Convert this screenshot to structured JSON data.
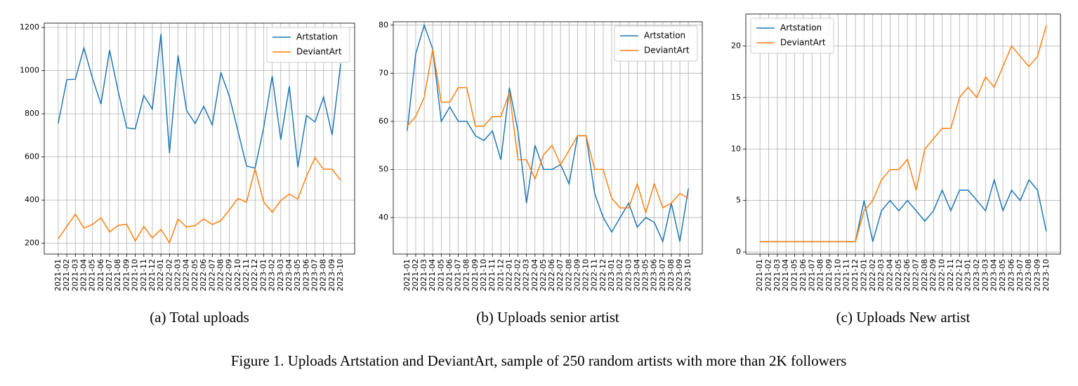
{
  "figure_caption": "Figure 1. Uploads Artstation and DeviantArt, sample of 250 random artists with more than 2K followers",
  "chart_data": [
    {
      "type": "line",
      "caption": "(a) Total uploads",
      "grid": true,
      "legend": "upper right",
      "categories": [
        "2021-01",
        "2021-02",
        "2021-03",
        "2021-04",
        "2021-05",
        "2021-06",
        "2021-07",
        "2021-08",
        "2021-09",
        "2021-10",
        "2021-11",
        "2021-12",
        "2022-01",
        "2022-02",
        "2022-03",
        "2022-04",
        "2022-05",
        "2022-06",
        "2022-07",
        "2022-08",
        "2022-09",
        "2022-10",
        "2022-11",
        "2022-12",
        "2023-01",
        "2023-02",
        "2023-03",
        "2023-04",
        "2023-05",
        "2023-06",
        "2023-07",
        "2023-08",
        "2023-09",
        "2023-10"
      ],
      "ylim": [
        150,
        1220
      ],
      "yticks": [
        200,
        400,
        600,
        800,
        1000,
        1200
      ],
      "series": [
        {
          "name": "Artstation",
          "color": "#1f77b4",
          "values": [
            755,
            958,
            960,
            1105,
            965,
            845,
            1095,
            905,
            735,
            730,
            885,
            822,
            1170,
            618,
            1070,
            815,
            755,
            835,
            748,
            992,
            880,
            720,
            558,
            548,
            735,
            975,
            680,
            928,
            553,
            792,
            762,
            878,
            702,
            1033
          ]
        },
        {
          "name": "DeviantArt",
          "color": "#ff7f0e",
          "values": [
            220,
            278,
            335,
            270,
            287,
            318,
            252,
            283,
            288,
            210,
            278,
            225,
            265,
            202,
            312,
            275,
            282,
            313,
            287,
            305,
            355,
            408,
            390,
            545,
            392,
            344,
            398,
            428,
            405,
            510,
            597,
            543,
            543,
            492
          ]
        }
      ]
    },
    {
      "type": "line",
      "caption": "(b) Uploads senior artist",
      "grid": true,
      "legend": "upper right",
      "categories": [
        "2021-01",
        "2021-02",
        "2021-03",
        "2021-04",
        "2021-05",
        "2021-06",
        "2021-07",
        "2021-08",
        "2021-09",
        "2021-10",
        "2021-11",
        "2021-12",
        "2022-01",
        "2022-02",
        "2022-03",
        "2022-04",
        "2022-05",
        "2022-06",
        "2022-07",
        "2022-08",
        "2022-09",
        "2022-10",
        "2022-11",
        "2022-12",
        "2023-01",
        "2023-02",
        "2023-03",
        "2023-04",
        "2023-05",
        "2023-06",
        "2023-07",
        "2023-08",
        "2023-09",
        "2023-10"
      ],
      "ylim": [
        32.4,
        80.7
      ],
      "yticks": [
        40,
        50,
        60,
        70,
        80
      ],
      "series": [
        {
          "name": "Artstation",
          "color": "#1f77b4",
          "values": [
            58,
            74,
            80,
            75,
            60,
            63,
            60,
            60,
            57,
            56,
            58,
            52,
            67,
            58,
            43,
            55,
            50,
            50,
            51,
            47,
            57,
            57,
            45,
            40,
            37,
            40,
            43,
            38,
            40,
            39,
            35,
            43,
            35,
            46
          ]
        },
        {
          "name": "DeviantArt",
          "color": "#ff7f0e",
          "values": [
            59,
            61,
            65,
            75,
            64,
            64,
            67,
            67,
            59,
            59,
            61,
            61,
            66,
            52,
            52,
            48,
            53,
            55,
            51,
            54,
            57,
            57,
            50,
            50,
            44,
            42,
            42,
            47,
            41,
            47,
            42,
            43,
            45,
            44
          ]
        }
      ]
    },
    {
      "type": "line",
      "caption": "(c) Uploads New artist",
      "grid": true,
      "legend": "upper left",
      "categories": [
        "2021-01",
        "2021-02",
        "2021-03",
        "2021-04",
        "2021-05",
        "2021-06",
        "2021-07",
        "2021-08",
        "2021-09",
        "2021-10",
        "2021-11",
        "2021-12",
        "2022-01",
        "2022-02",
        "2022-03",
        "2022-04",
        "2022-05",
        "2022-06",
        "2022-07",
        "2022-08",
        "2022-09",
        "2022-10",
        "2022-11",
        "2022-12",
        "2023-01",
        "2023-02",
        "2023-03",
        "2023-04",
        "2023-05",
        "2023-06",
        "2023-07",
        "2023-08",
        "2023-09",
        "2023-10"
      ],
      "ylim": [
        -0.2,
        23.1
      ],
      "yticks": [
        0,
        5,
        10,
        15,
        20
      ],
      "series": [
        {
          "name": "Artstation",
          "color": "#1f77b4",
          "values": [
            1,
            1,
            1,
            1,
            1,
            1,
            1,
            1,
            1,
            1,
            1,
            1,
            5,
            1,
            4,
            5,
            4,
            5,
            4,
            3,
            4,
            6,
            4,
            6,
            6,
            5,
            4,
            7,
            4,
            6,
            5,
            7,
            6,
            2
          ]
        },
        {
          "name": "DeviantArt",
          "color": "#ff7f0e",
          "values": [
            1,
            1,
            1,
            1,
            1,
            1,
            1,
            1,
            1,
            1,
            1,
            1,
            4,
            5,
            7,
            8,
            8,
            9,
            6,
            10,
            11,
            12,
            12,
            15,
            16,
            15,
            17,
            16,
            18,
            20,
            19,
            18,
            19,
            22
          ]
        }
      ]
    }
  ]
}
